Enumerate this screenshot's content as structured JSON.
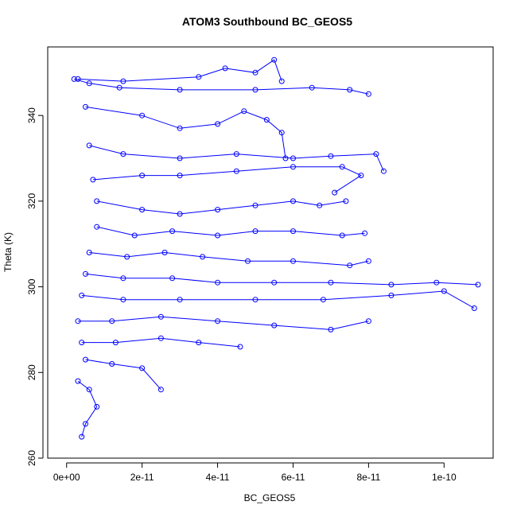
{
  "chart_data": {
    "type": "scatter",
    "title": "ATOM3 Southbound BC_GEOS5",
    "xlabel": "BC_GEOS5",
    "ylabel": "Theta (K)",
    "xlim": [
      -5e-12,
      1.13e-10
    ],
    "ylim": [
      260,
      356
    ],
    "x_ticks": [
      {
        "value": 0,
        "label": "0e+00"
      },
      {
        "value": 2e-11,
        "label": "2e-11"
      },
      {
        "value": 4e-11,
        "label": "4e-11"
      },
      {
        "value": 6e-11,
        "label": "6e-11"
      },
      {
        "value": 8e-11,
        "label": "8e-11"
      },
      {
        "value": 1e-10,
        "label": "1e-10"
      }
    ],
    "y_ticks": [
      {
        "value": 260,
        "label": "260"
      },
      {
        "value": 280,
        "label": "280"
      },
      {
        "value": 300,
        "label": "300"
      },
      {
        "value": 320,
        "label": "320"
      },
      {
        "value": 340,
        "label": "340"
      }
    ],
    "grid": false,
    "marker": "open-circle",
    "connected": true,
    "color": "#0000ff",
    "series": [
      {
        "values": [
          [
            2e-12,
            348.5
          ],
          [
            6e-12,
            347.5
          ],
          [
            1.4e-11,
            346.5
          ],
          [
            3e-11,
            346
          ],
          [
            5e-11,
            346
          ],
          [
            6.5e-11,
            346.5
          ],
          [
            7.5e-11,
            346
          ],
          [
            8e-11,
            345
          ]
        ]
      },
      {
        "values": [
          [
            3e-12,
            348.5
          ],
          [
            1.5e-11,
            348
          ],
          [
            3.5e-11,
            349
          ],
          [
            4.2e-11,
            351
          ],
          [
            5e-11,
            350
          ],
          [
            5.5e-11,
            353
          ],
          [
            5.7e-11,
            348
          ]
        ]
      },
      {
        "values": [
          [
            5e-12,
            342
          ],
          [
            2e-11,
            340
          ],
          [
            3e-11,
            337
          ],
          [
            4e-11,
            338
          ],
          [
            4.7e-11,
            341
          ],
          [
            5.3e-11,
            339
          ],
          [
            5.7e-11,
            336
          ],
          [
            5.8e-11,
            330
          ]
        ]
      },
      {
        "values": [
          [
            6e-12,
            333
          ],
          [
            1.5e-11,
            331
          ],
          [
            3e-11,
            330
          ],
          [
            4.5e-11,
            331
          ],
          [
            6e-11,
            330
          ],
          [
            7e-11,
            330.5
          ],
          [
            8.2e-11,
            331
          ],
          [
            8.4e-11,
            327
          ]
        ]
      },
      {
        "values": [
          [
            7e-12,
            325
          ],
          [
            2e-11,
            326
          ],
          [
            3e-11,
            326
          ],
          [
            4.5e-11,
            327
          ],
          [
            6e-11,
            328
          ],
          [
            7.3e-11,
            328
          ],
          [
            7.8e-11,
            326
          ],
          [
            7.1e-11,
            322
          ]
        ]
      },
      {
        "values": [
          [
            8e-12,
            320
          ],
          [
            2e-11,
            318
          ],
          [
            3e-11,
            317
          ],
          [
            4e-11,
            318
          ],
          [
            5e-11,
            319
          ],
          [
            6e-11,
            320
          ],
          [
            6.7e-11,
            319
          ],
          [
            7.4e-11,
            320
          ]
        ]
      },
      {
        "values": [
          [
            8e-12,
            314
          ],
          [
            1.8e-11,
            312
          ],
          [
            2.8e-11,
            313
          ],
          [
            4e-11,
            312
          ],
          [
            5e-11,
            313
          ],
          [
            6e-11,
            313
          ],
          [
            7.3e-11,
            312
          ],
          [
            7.9e-11,
            312.5
          ]
        ]
      },
      {
        "values": [
          [
            6e-12,
            308
          ],
          [
            1.6e-11,
            307
          ],
          [
            2.6e-11,
            308
          ],
          [
            3.6e-11,
            307
          ],
          [
            4.8e-11,
            306
          ],
          [
            6e-11,
            306
          ],
          [
            7.5e-11,
            305
          ],
          [
            8e-11,
            306
          ]
        ]
      },
      {
        "values": [
          [
            5e-12,
            303
          ],
          [
            1.5e-11,
            302
          ],
          [
            2.8e-11,
            302
          ],
          [
            4e-11,
            301
          ],
          [
            5.5e-11,
            301
          ],
          [
            7e-11,
            301
          ],
          [
            8.6e-11,
            300.5
          ],
          [
            9.8e-11,
            301
          ],
          [
            1.09e-10,
            300.5
          ]
        ]
      },
      {
        "values": [
          [
            4e-12,
            298
          ],
          [
            1.5e-11,
            297
          ],
          [
            3e-11,
            297
          ],
          [
            5e-11,
            297
          ],
          [
            6.8e-11,
            297
          ],
          [
            8.6e-11,
            298
          ],
          [
            1e-10,
            299
          ],
          [
            1.08e-10,
            295
          ]
        ]
      },
      {
        "values": [
          [
            3e-12,
            292
          ],
          [
            1.2e-11,
            292
          ],
          [
            2.5e-11,
            293
          ],
          [
            4e-11,
            292
          ],
          [
            5.5e-11,
            291
          ],
          [
            7e-11,
            290
          ],
          [
            8e-11,
            292
          ]
        ]
      },
      {
        "values": [
          [
            4e-12,
            287
          ],
          [
            1.3e-11,
            287
          ],
          [
            2.5e-11,
            288
          ],
          [
            3.5e-11,
            287
          ],
          [
            4.6e-11,
            286
          ]
        ]
      },
      {
        "values": [
          [
            5e-12,
            283
          ],
          [
            1.2e-11,
            282
          ],
          [
            2e-11,
            281
          ],
          [
            2.5e-11,
            276
          ]
        ]
      },
      {
        "values": [
          [
            3e-12,
            278
          ],
          [
            6e-12,
            276
          ],
          [
            8e-12,
            272
          ],
          [
            5e-12,
            268
          ],
          [
            4e-12,
            265
          ]
        ]
      }
    ]
  }
}
